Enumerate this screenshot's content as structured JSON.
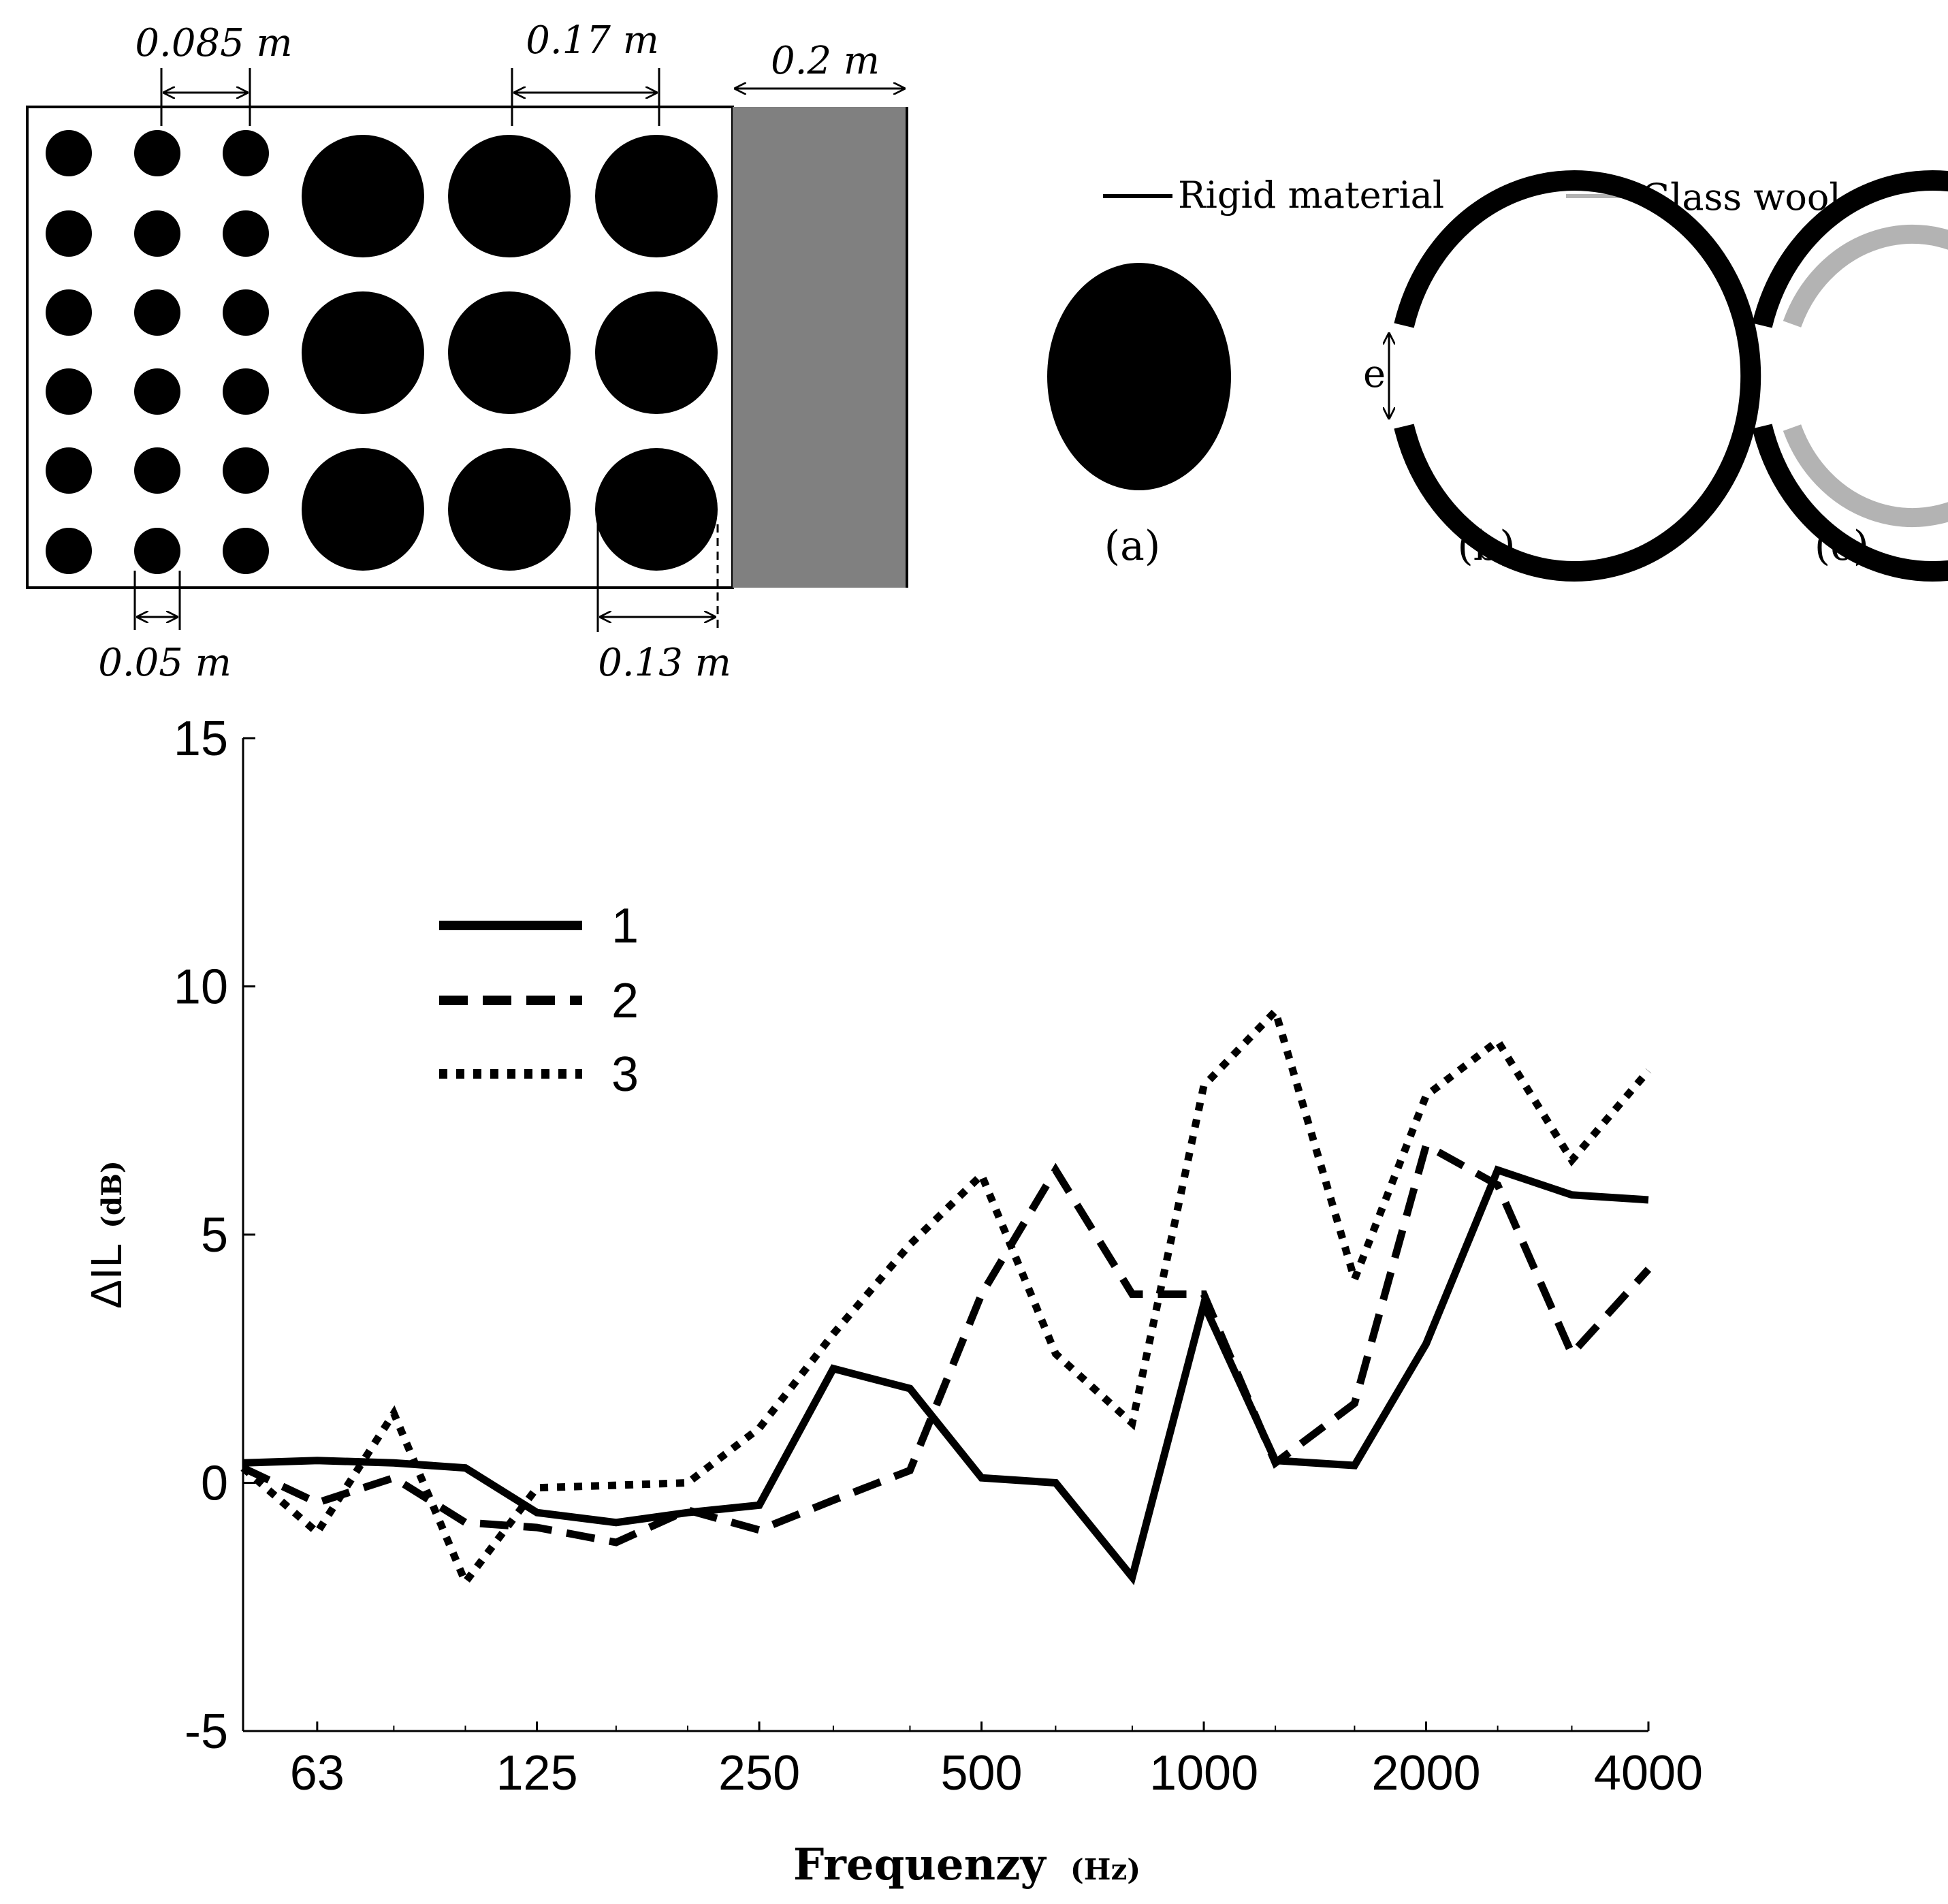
{
  "geometry_panel": {
    "dimension_labels": {
      "small_spacing": "0.085 m",
      "large_spacing": "0.17 m",
      "barrier_width": "0.2 m",
      "small_diameter": "0.05 m",
      "large_diameter": "0.13 m"
    },
    "small_scatterer_grid": {
      "rows": 6,
      "cols": 3
    },
    "large_scatterer_grid": {
      "rows": 3,
      "cols": 3
    },
    "barrier_color": "#808080"
  },
  "scatterer_types": {
    "legend": [
      {
        "label": "Rigid material",
        "color": "#000000"
      },
      {
        "label": "Glass wool",
        "color": "#b3b3b3"
      }
    ],
    "opening_label": "e",
    "captions": [
      "(a)",
      "(b)",
      "(c)"
    ]
  },
  "chart_data": {
    "type": "line",
    "xscale": "log2",
    "x_tick_labels": [
      "63",
      "125",
      "250",
      "500",
      "1000",
      "2000",
      "4000"
    ],
    "x_tick_values": [
      63,
      125,
      250,
      500,
      1000,
      2000,
      4000
    ],
    "y_ticks": [
      "-5",
      "0",
      "5",
      "10",
      "15"
    ],
    "ylim": [
      -5,
      15
    ],
    "xlim": [
      50,
      4000
    ],
    "xlabel": "Frequenzy",
    "xlabel_unit": "(Hz)",
    "ylabel": "ΔIL",
    "ylabel_unit": "(dB)",
    "legend_position": "top-left",
    "series": [
      {
        "name": "1",
        "style": "solid",
        "points": [
          [
            50,
            0.4
          ],
          [
            63,
            0.45
          ],
          [
            80,
            0.4
          ],
          [
            100,
            0.3
          ],
          [
            125,
            -0.6
          ],
          [
            160,
            -0.8
          ],
          [
            200,
            -0.6
          ],
          [
            250,
            -0.45
          ],
          [
            315,
            2.3
          ],
          [
            400,
            1.9
          ],
          [
            500,
            0.1
          ],
          [
            630,
            0
          ],
          [
            800,
            -1.9
          ],
          [
            1000,
            3.6
          ],
          [
            1250,
            0.45
          ],
          [
            1600,
            0.35
          ],
          [
            2000,
            2.8
          ],
          [
            2500,
            6.3
          ],
          [
            3150,
            5.8
          ],
          [
            4000,
            5.7
          ]
        ]
      },
      {
        "name": "2",
        "style": "dashed",
        "points": [
          [
            50,
            0.3
          ],
          [
            63,
            -0.4
          ],
          [
            80,
            0.1
          ],
          [
            100,
            -0.8
          ],
          [
            125,
            -0.9
          ],
          [
            160,
            -1.2
          ],
          [
            200,
            -0.55
          ],
          [
            250,
            -0.95
          ],
          [
            315,
            -0.35
          ],
          [
            400,
            0.25
          ],
          [
            500,
            3.8
          ],
          [
            630,
            6.3
          ],
          [
            800,
            3.8
          ],
          [
            1000,
            3.8
          ],
          [
            1250,
            0.4
          ],
          [
            1600,
            1.6
          ],
          [
            2000,
            6.8
          ],
          [
            2500,
            6
          ],
          [
            3150,
            2.6
          ],
          [
            4000,
            4.3
          ]
        ]
      },
      {
        "name": "3",
        "style": "dotted",
        "points": [
          [
            50,
            0.3
          ],
          [
            63,
            -1
          ],
          [
            80,
            1.4
          ],
          [
            100,
            -2
          ],
          [
            125,
            -0.1
          ],
          [
            160,
            -0.05
          ],
          [
            200,
            0
          ],
          [
            250,
            1.1
          ],
          [
            315,
            3
          ],
          [
            400,
            4.8
          ],
          [
            500,
            6.2
          ],
          [
            630,
            2.6
          ],
          [
            800,
            1.2
          ],
          [
            1000,
            8
          ],
          [
            1250,
            9.5
          ],
          [
            1600,
            4.1
          ],
          [
            2000,
            7.8
          ],
          [
            2500,
            8.9
          ],
          [
            3150,
            6.5
          ],
          [
            4000,
            8.3
          ]
        ]
      }
    ]
  }
}
